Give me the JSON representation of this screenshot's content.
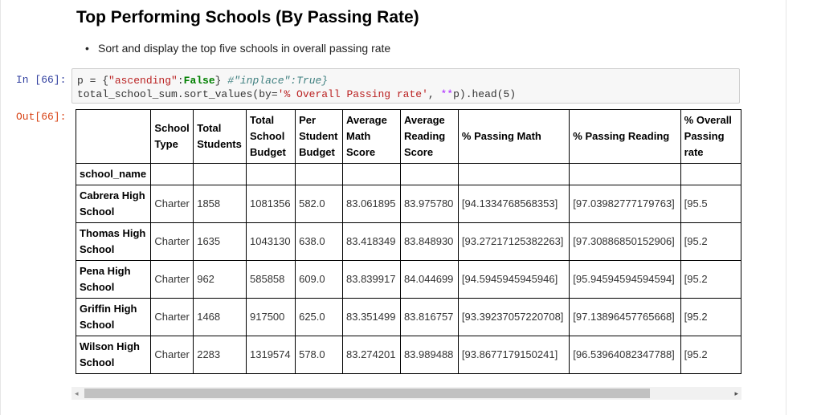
{
  "title": "Top Performing Schools (By Passing Rate)",
  "bullet": "Sort and display the top five schools in overall passing rate",
  "input_prompt": "In [66]:",
  "output_prompt": "Out[66]:",
  "code": {
    "line1": {
      "p1": "p = {",
      "s1": "\"ascending\"",
      "p2": ":",
      "kw": "False",
      "p3": "} ",
      "com": "#\"inplace\":True}"
    },
    "line2": {
      "p1": "total_school_sum.sort_values(by=",
      "s1": "'% Overall Passing rate'",
      "p2": ", ",
      "op": "**",
      "p3": "p).head(5)"
    }
  },
  "table": {
    "columns": [
      "School Type",
      "Total Students",
      "Total School Budget",
      "Per Student Budget",
      "Average Math Score",
      "Average Reading Score",
      "% Passing Math",
      "% Passing Reading",
      "% Overall Passing rate"
    ],
    "index_name": "school_name",
    "rows": [
      {
        "name": "Cabrera High School",
        "cells": [
          "Charter",
          "1858",
          "1081356",
          "582.0",
          "83.061895",
          "83.975780",
          "[94.1334768568353]",
          "[97.03982777179763]",
          "[95.5"
        ]
      },
      {
        "name": "Thomas High School",
        "cells": [
          "Charter",
          "1635",
          "1043130",
          "638.0",
          "83.418349",
          "83.848930",
          "[93.27217125382263]",
          "[97.30886850152906]",
          "[95.2"
        ]
      },
      {
        "name": "Pena High School",
        "cells": [
          "Charter",
          "962",
          "585858",
          "609.0",
          "83.839917",
          "84.044699",
          "[94.5945945945946]",
          "[95.94594594594594]",
          "[95.2"
        ]
      },
      {
        "name": "Griffin High School",
        "cells": [
          "Charter",
          "1468",
          "917500",
          "625.0",
          "83.351499",
          "83.816757",
          "[93.39237057220708]",
          "[97.13896457765668]",
          "[95.2"
        ]
      },
      {
        "name": "Wilson High School",
        "cells": [
          "Charter",
          "2283",
          "1319574",
          "578.0",
          "83.274201",
          "83.989488",
          "[93.8677179150241]",
          "[96.53964082347788]",
          "[95.2"
        ]
      }
    ]
  },
  "scroll": {
    "left_arrow": "◂",
    "right_arrow": "▸"
  }
}
